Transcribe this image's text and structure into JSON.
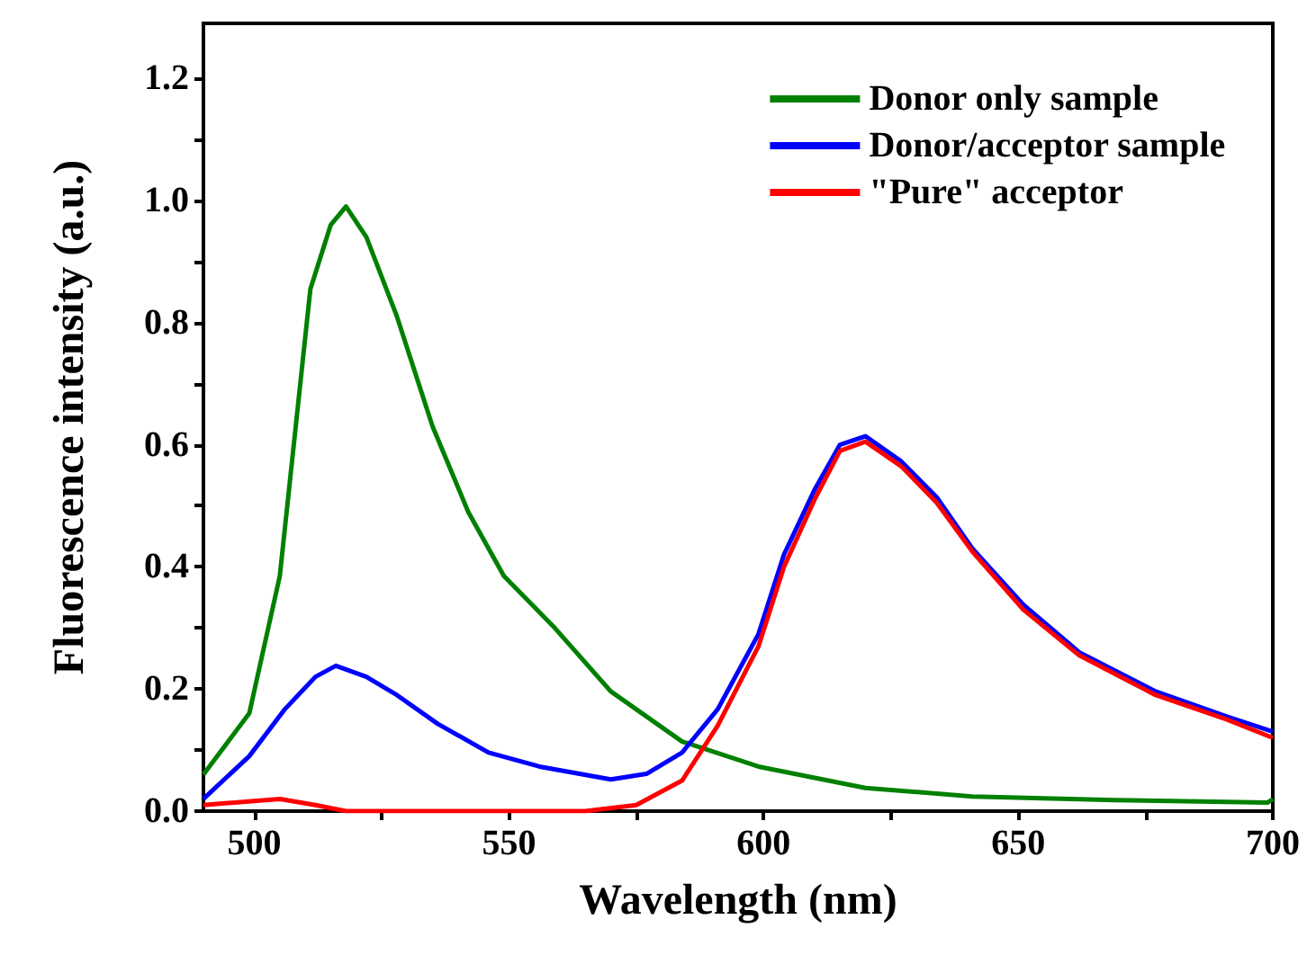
{
  "chart_data": {
    "type": "line",
    "xlabel": "Wavelength (nm)",
    "ylabel": "Fluorescence intensity (a.u.)",
    "xlim": [
      490,
      700
    ],
    "xticks": [
      500,
      {
        "value": 525,
        "label": null
      },
      550,
      {
        "value": 575,
        "label": null
      },
      600,
      {
        "value": 625,
        "label": null
      },
      650,
      {
        "value": 675,
        "label": null
      },
      700
    ],
    "ylim": [
      0,
      1.29
    ],
    "yticks": [
      "0.0",
      {
        "value": 0.1,
        "label": null
      },
      0.2,
      {
        "value": 0.3,
        "label": null
      },
      0.4,
      {
        "value": 0.5,
        "label": null
      },
      0.6,
      {
        "value": 0.7,
        "label": null
      },
      0.8,
      {
        "value": 0.9,
        "label": null
      },
      "1.0",
      {
        "value": 1.1,
        "label": null
      },
      1.2
    ],
    "grid": false,
    "legend": "top right",
    "marker": "none",
    "line_style": "solid",
    "series": [
      {
        "name": "Donor only sample",
        "color": "#008000",
        "x": [
          490,
          499,
          505,
          508,
          511,
          515,
          518,
          522,
          528,
          535,
          542,
          549,
          559,
          570,
          584,
          599,
          620,
          641,
          669,
          699,
          700
        ],
        "values": [
          0.06,
          0.16,
          0.385,
          0.62,
          0.855,
          0.96,
          0.99,
          0.94,
          0.81,
          0.63,
          0.49,
          0.385,
          0.3,
          0.196,
          0.114,
          0.073,
          0.038,
          0.024,
          0.018,
          0.014,
          0.02
        ]
      },
      {
        "name": "Donor/acceptor sample",
        "color": "#0000ff",
        "x": [
          490,
          499,
          506,
          512,
          516,
          522,
          528,
          536,
          546,
          556,
          570,
          577,
          584,
          591,
          599,
          604,
          610,
          615,
          620,
          627,
          634,
          641,
          651,
          662,
          677,
          691,
          700
        ],
        "values": [
          0.02,
          0.09,
          0.167,
          0.22,
          0.238,
          0.22,
          0.19,
          0.143,
          0.096,
          0.073,
          0.052,
          0.061,
          0.096,
          0.167,
          0.29,
          0.42,
          0.526,
          0.6,
          0.614,
          0.573,
          0.514,
          0.43,
          0.338,
          0.26,
          0.196,
          0.155,
          0.13
        ]
      },
      {
        "name": "\"Pure\" acceptor",
        "color": "#ff0000",
        "x": [
          490,
          505,
          512,
          518,
          540,
          565,
          575,
          584,
          591,
          599,
          604,
          610,
          615,
          620,
          627,
          634,
          641,
          651,
          662,
          677,
          691,
          700
        ],
        "values": [
          0.01,
          0.02,
          0.01,
          0,
          0,
          0,
          0.01,
          0.05,
          0.14,
          0.27,
          0.4,
          0.51,
          0.59,
          0.605,
          0.565,
          0.505,
          0.425,
          0.33,
          0.255,
          0.19,
          0.15,
          0.12
        ]
      }
    ]
  }
}
